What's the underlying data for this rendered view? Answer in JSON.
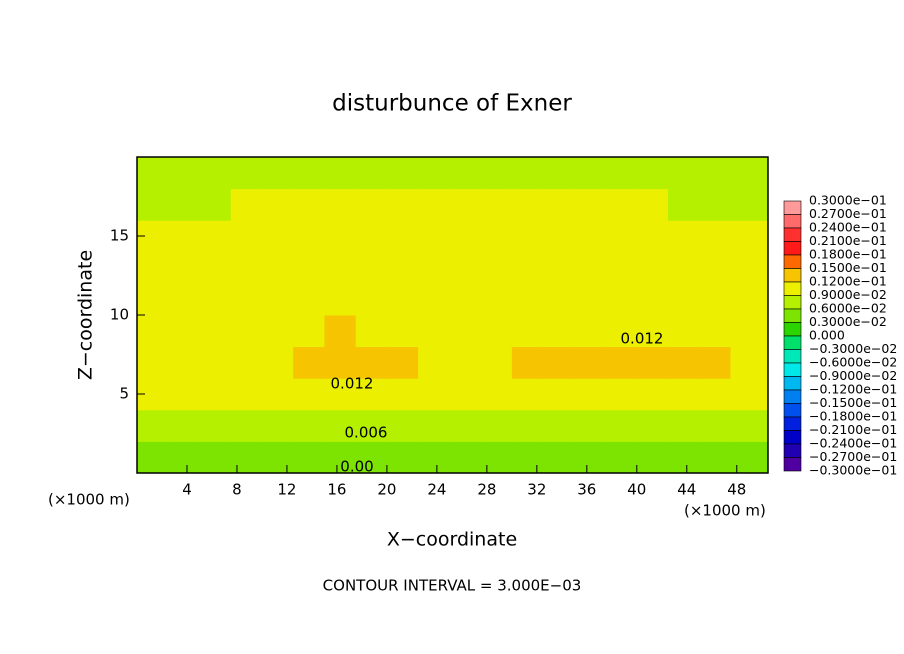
{
  "chart_data": {
    "type": "contour",
    "title": "disturbunce of Exner",
    "xlabel": "X−coordinate",
    "ylabel": "Z−coordinate",
    "xunit": "(×1000 m)",
    "yunit": "(×1000 m)",
    "footer": "CONTOUR INTERVAL = 3.000E−03",
    "xlim": [
      0,
      50.5
    ],
    "ylim": [
      0,
      20
    ],
    "xticks": [
      4,
      8,
      12,
      16,
      20,
      24,
      28,
      32,
      36,
      40,
      44,
      48
    ],
    "yticks": [
      5,
      10,
      15
    ],
    "x": [
      1.25,
      3.75,
      6.25,
      8.75,
      11.25,
      13.75,
      16.25,
      18.75,
      21.25,
      23.75,
      26.25,
      28.75,
      31.25,
      33.75,
      36.25,
      38.75,
      41.25,
      43.75,
      46.25,
      48.75
    ],
    "y": [
      1,
      3,
      5,
      7,
      9,
      11,
      13,
      15,
      17,
      19
    ],
    "z": [
      [
        0.004,
        0.004,
        0.004,
        0.004,
        0.004,
        0.004,
        0.004,
        0.004,
        0.004,
        0.004,
        0.004,
        0.004,
        0.004,
        0.004,
        0.004,
        0.004,
        0.004,
        0.004,
        0.004,
        0.004
      ],
      [
        0.0065,
        0.0065,
        0.0065,
        0.0065,
        0.0065,
        0.0065,
        0.0065,
        0.0065,
        0.0065,
        0.0065,
        0.0065,
        0.0065,
        0.0065,
        0.0065,
        0.0065,
        0.0065,
        0.0065,
        0.0065,
        0.0065,
        0.0065
      ],
      [
        0.0095,
        0.0095,
        0.0095,
        0.0095,
        0.0096,
        0.0098,
        0.0099,
        0.0098,
        0.0097,
        0.0095,
        0.0095,
        0.0095,
        0.0097,
        0.0098,
        0.0098,
        0.0098,
        0.0098,
        0.0098,
        0.0098,
        0.0097
      ],
      [
        0.0108,
        0.0108,
        0.0108,
        0.0108,
        0.0118,
        0.0128,
        0.0134,
        0.013,
        0.0123,
        0.0112,
        0.0108,
        0.0112,
        0.0122,
        0.0126,
        0.0128,
        0.013,
        0.013,
        0.0128,
        0.0125,
        0.0118
      ],
      [
        0.0104,
        0.0104,
        0.0104,
        0.0104,
        0.0107,
        0.0114,
        0.0121,
        0.0115,
        0.0108,
        0.0104,
        0.0104,
        0.0104,
        0.0107,
        0.0109,
        0.011,
        0.011,
        0.011,
        0.0109,
        0.0107,
        0.0105
      ],
      [
        0.0101,
        0.0101,
        0.0101,
        0.0101,
        0.0101,
        0.0102,
        0.0103,
        0.0102,
        0.0101,
        0.0101,
        0.0101,
        0.0101,
        0.0101,
        0.0101,
        0.0101,
        0.0101,
        0.0101,
        0.0101,
        0.0101,
        0.0101
      ],
      [
        0.01,
        0.01,
        0.01,
        0.01,
        0.01,
        0.01,
        0.01,
        0.01,
        0.01,
        0.01,
        0.01,
        0.01,
        0.01,
        0.01,
        0.01,
        0.01,
        0.01,
        0.01,
        0.01,
        0.01
      ],
      [
        0.0097,
        0.0097,
        0.0097,
        0.0097,
        0.0097,
        0.0097,
        0.0097,
        0.0097,
        0.0097,
        0.0097,
        0.0097,
        0.0097,
        0.0097,
        0.0097,
        0.0097,
        0.0097,
        0.0097,
        0.0097,
        0.0097,
        0.0097
      ],
      [
        0.0089,
        0.0089,
        0.0089,
        0.009,
        0.0091,
        0.0092,
        0.0092,
        0.0092,
        0.0092,
        0.0092,
        0.0092,
        0.0092,
        0.0091,
        0.0091,
        0.009,
        0.009,
        0.009,
        0.0089,
        0.0089,
        0.0089
      ],
      [
        0.0086,
        0.0086,
        0.0086,
        0.0086,
        0.0087,
        0.0087,
        0.0087,
        0.0087,
        0.0087,
        0.0087,
        0.0087,
        0.0087,
        0.0087,
        0.0087,
        0.0087,
        0.0086,
        0.0086,
        0.0086,
        0.0086,
        0.0086
      ]
    ],
    "levels": [
      {
        "value": 0.03,
        "label": "0.3000e−01"
      },
      {
        "value": 0.027,
        "label": "0.2700e−01"
      },
      {
        "value": 0.024,
        "label": "0.2400e−01"
      },
      {
        "value": 0.021,
        "label": "0.2100e−01"
      },
      {
        "value": 0.018,
        "label": "0.1800e−01"
      },
      {
        "value": 0.015,
        "label": "0.1500e−01"
      },
      {
        "value": 0.012,
        "label": "0.1200e−01"
      },
      {
        "value": 0.009,
        "label": "0.9000e−02"
      },
      {
        "value": 0.006,
        "label": "0.6000e−02"
      },
      {
        "value": 0.003,
        "label": "0.3000e−02"
      },
      {
        "value": 0,
        "label": "0.000"
      },
      {
        "value": -0.003,
        "label": "−0.3000e−02"
      },
      {
        "value": -0.006,
        "label": "−0.6000e−02"
      },
      {
        "value": -0.009,
        "label": "−0.9000e−02"
      },
      {
        "value": -0.012,
        "label": "−0.1200e−01"
      },
      {
        "value": -0.015,
        "label": "−0.1500e−01"
      },
      {
        "value": -0.018,
        "label": "−0.1800e−01"
      },
      {
        "value": -0.021,
        "label": "−0.2100e−01"
      },
      {
        "value": -0.024,
        "label": "−0.2400e−01"
      },
      {
        "value": -0.027,
        "label": "−0.2700e−01"
      },
      {
        "value": -0.03,
        "label": "−0.3000e−01"
      }
    ],
    "colors": [
      "#ff9a9a",
      "#ff6a6a",
      "#ff3030",
      "#ff1a1a",
      "#ff6a00",
      "#f6c400",
      "#ecf000",
      "#b4f000",
      "#7ce400",
      "#2cd400",
      "#00e06a",
      "#00e8b8",
      "#00e8e8",
      "#00b8f0",
      "#0080f0",
      "#0050f0",
      "#0020e0",
      "#0000c8",
      "#2000b0",
      "#5000a0"
    ],
    "annotations": [
      "0.012",
      "0.012",
      "0.006",
      "0.00"
    ]
  }
}
